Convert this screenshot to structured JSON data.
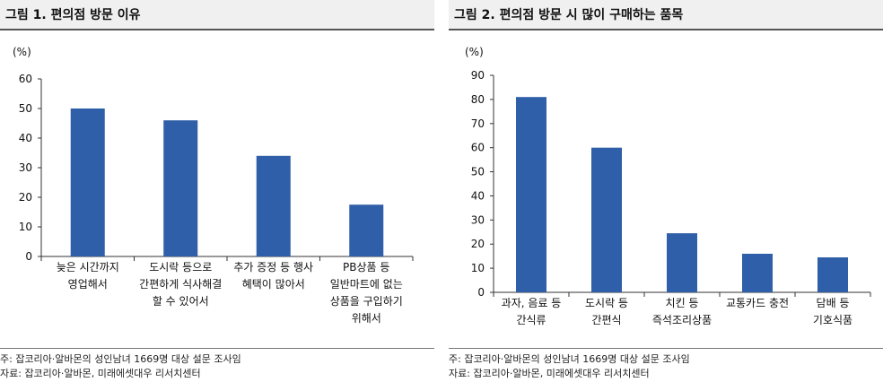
{
  "chart_data": [
    {
      "type": "bar",
      "title": "그림 1. 편의점 방문 이유",
      "ylabel": "(%)",
      "ylim": [
        0,
        60
      ],
      "yticks": [
        0,
        10,
        20,
        30,
        40,
        50,
        60
      ],
      "categories": [
        [
          "늦은 시간까지",
          "영업해서"
        ],
        [
          "도시락 등으로",
          "간편하게 식사해결",
          "할 수 있어서"
        ],
        [
          "추가 증정 등 행사",
          "혜택이 많아서"
        ],
        [
          "PB상품 등",
          "일반마트에 없는",
          "상품을 구입하기",
          "위해서"
        ]
      ],
      "values": [
        50,
        46,
        34,
        17.5
      ],
      "bar_color": "#2e5fa8",
      "notes": [
        "주: 잡코리아·알바몬의 성인남녀 1669명 대상 설문 조사임",
        "자료: 잡코리아·알바몬, 미래에셋대우 리서치센터"
      ]
    },
    {
      "type": "bar",
      "title": "그림 2. 편의점 방문 시 많이 구매하는 품목",
      "ylabel": "(%)",
      "ylim": [
        0,
        90
      ],
      "yticks": [
        0,
        10,
        20,
        30,
        40,
        50,
        60,
        70,
        80,
        90
      ],
      "categories": [
        [
          "과자, 음료 등",
          "간식류"
        ],
        [
          "도시락 등",
          "간편식"
        ],
        [
          "치킨 등",
          "즉석조리상품"
        ],
        [
          "교통카드 충전"
        ],
        [
          "담배 등",
          "기호식품"
        ]
      ],
      "values": [
        81,
        60,
        24.5,
        16,
        14.5
      ],
      "bar_color": "#2e5fa8",
      "notes": [
        "주: 잡코리아·알바몬의 성인남녀 1669명 대상 설문 조사임",
        "자료: 잡코리아·알바몬, 미래에셋대우 리서치센터"
      ]
    }
  ]
}
